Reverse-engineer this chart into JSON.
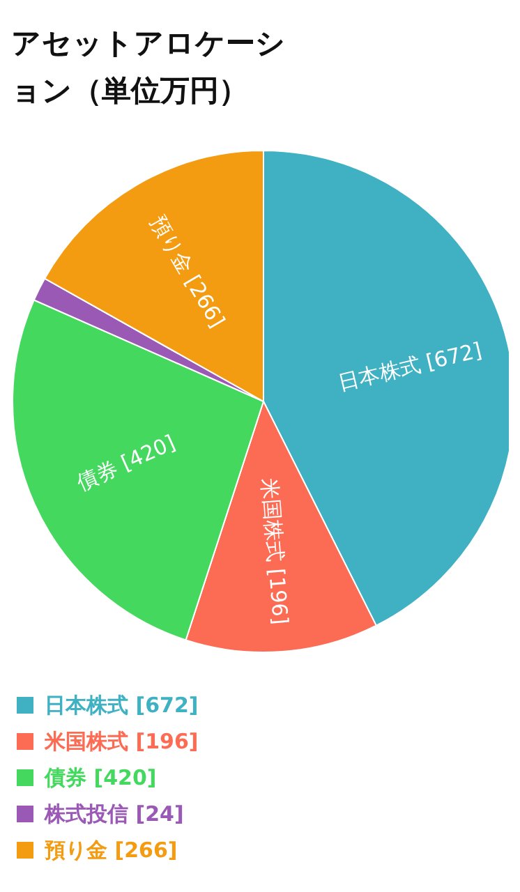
{
  "chart_data": {
    "type": "pie",
    "title": "アセットアロケーション（単位万円）",
    "categories": [
      "日本株式",
      "米国株式",
      "債券",
      "株式投信",
      "預り金"
    ],
    "values": [
      672,
      196,
      420,
      24,
      266
    ],
    "value_labels": [
      "[672]",
      "[196]",
      "[420]",
      "[24]",
      "[266]"
    ],
    "colors": [
      "#3fb1c3",
      "#fc6b53",
      "#45d85f",
      "#9b59b6",
      "#f39c12"
    ],
    "legend": "bottom"
  }
}
